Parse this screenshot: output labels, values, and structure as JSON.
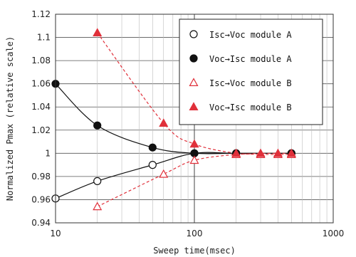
{
  "chart_data": {
    "type": "scatter",
    "xlabel": "Sweep time(msec)",
    "ylabel": "Normalized Pmax (relative scale)",
    "xscale": "log",
    "xlim": [
      10,
      1000
    ],
    "ylim": [
      0.94,
      1.12
    ],
    "x_ticks": [
      "10",
      "100",
      "1000"
    ],
    "y_ticks": [
      "0.94",
      "0.96",
      "0.98",
      "1",
      "1.02",
      "1.04",
      "1.06",
      "1.08",
      "1.1",
      "1.12"
    ],
    "grid": true,
    "legend_position": "top-right",
    "series": [
      {
        "name": "Isc→Voc module A",
        "marker": "circle-open",
        "color": "#111111",
        "line": "solid",
        "x": [
          10,
          20,
          50,
          100,
          200,
          500
        ],
        "y": [
          0.961,
          0.976,
          0.99,
          1.0,
          1.0,
          1.0
        ]
      },
      {
        "name": "Voc→Isc module A",
        "marker": "circle-filled",
        "color": "#111111",
        "line": "solid",
        "x": [
          10,
          20,
          50,
          100,
          200,
          500
        ],
        "y": [
          1.06,
          1.024,
          1.005,
          1.0,
          1.0,
          1.0
        ]
      },
      {
        "name": "Isc→Voc module B",
        "marker": "triangle-open",
        "color": "#e0303a",
        "line": "dashed",
        "x": [
          20,
          60,
          100,
          200,
          300,
          400,
          500
        ],
        "y": [
          0.954,
          0.982,
          0.994,
          0.999,
          0.999,
          0.999,
          0.999
        ]
      },
      {
        "name": "Voc→Isc module B",
        "marker": "triangle-filled",
        "color": "#e0303a",
        "line": "dashed",
        "x": [
          20,
          60,
          100,
          200,
          300,
          400,
          500
        ],
        "y": [
          1.104,
          1.026,
          1.008,
          1.0,
          1.0,
          1.0,
          1.0
        ]
      }
    ]
  }
}
